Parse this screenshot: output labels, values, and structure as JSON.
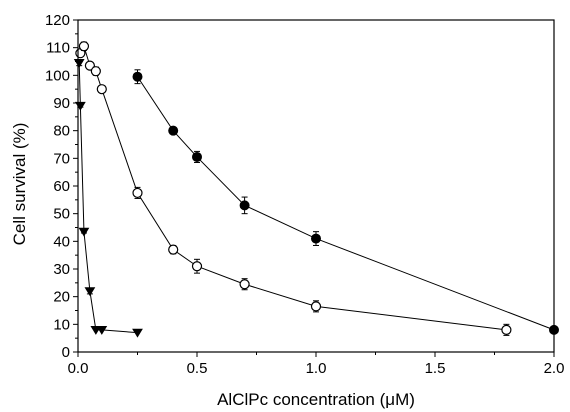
{
  "chart_data": {
    "type": "scatter",
    "title": "",
    "xlabel": "AlClPc concentration (μM)",
    "ylabel": "Cell survival (%)",
    "xlim": [
      0,
      2.0
    ],
    "ylim": [
      0,
      120
    ],
    "xticks": [
      "0.0",
      "0.5",
      "1.0",
      "1.5",
      "2.0"
    ],
    "yticks": [
      "0",
      "10",
      "20",
      "30",
      "40",
      "50",
      "60",
      "70",
      "80",
      "90",
      "100",
      "110",
      "120"
    ],
    "grid": false,
    "legend": "none",
    "series": [
      {
        "marker": "filled-circle",
        "color": "#000000",
        "points": [
          {
            "x": 0.25,
            "y": 99.5,
            "err": 2.5
          },
          {
            "x": 0.4,
            "y": 80,
            "err": 1
          },
          {
            "x": 0.5,
            "y": 70.5,
            "err": 2
          },
          {
            "x": 0.7,
            "y": 53,
            "err": 3
          },
          {
            "x": 1.0,
            "y": 41,
            "err": 2.5
          },
          {
            "x": 2.0,
            "y": 8,
            "err": 0.5
          }
        ]
      },
      {
        "marker": "open-circle",
        "color": "#000000",
        "points": [
          {
            "x": 0.01,
            "y": 108,
            "err": 1
          },
          {
            "x": 0.025,
            "y": 110.5,
            "err": 1.5
          },
          {
            "x": 0.05,
            "y": 103.5,
            "err": 1
          },
          {
            "x": 0.075,
            "y": 101.5,
            "err": 1.5
          },
          {
            "x": 0.1,
            "y": 95,
            "err": 1
          },
          {
            "x": 0.25,
            "y": 57.5,
            "err": 2
          },
          {
            "x": 0.4,
            "y": 37,
            "err": 1.5
          },
          {
            "x": 0.5,
            "y": 31,
            "err": 2.5
          },
          {
            "x": 0.7,
            "y": 24.5,
            "err": 2
          },
          {
            "x": 1.0,
            "y": 16.5,
            "err": 2
          },
          {
            "x": 1.8,
            "y": 8,
            "err": 2
          }
        ]
      },
      {
        "marker": "filled-triangle-down",
        "color": "#000000",
        "points": [
          {
            "x": 0.005,
            "y": 104.5,
            "err": 1
          },
          {
            "x": 0.01,
            "y": 89,
            "err": 0.5
          },
          {
            "x": 0.025,
            "y": 43.5,
            "err": 0.5
          },
          {
            "x": 0.05,
            "y": 22,
            "err": 1
          },
          {
            "x": 0.075,
            "y": 8,
            "err": 0
          },
          {
            "x": 0.1,
            "y": 8,
            "err": 0
          },
          {
            "x": 0.25,
            "y": 7,
            "err": 0
          }
        ]
      }
    ]
  }
}
